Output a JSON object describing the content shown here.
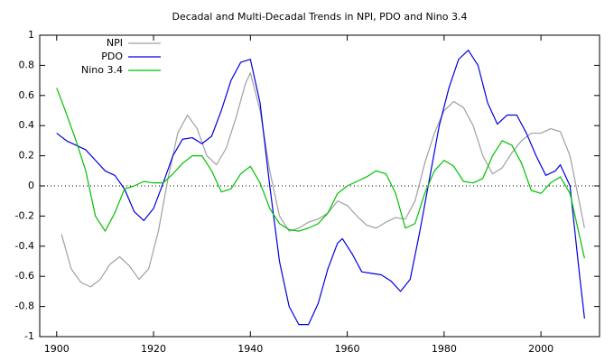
{
  "chart_data": {
    "type": "line",
    "title": "Decadal and Multi-Decadal Trends in NPI, PDO and Nino 3.4",
    "xlim": [
      1896.5,
      2012.1
    ],
    "ylim": [
      -1,
      1
    ],
    "xticks": [
      1900,
      1920,
      1940,
      1960,
      1980,
      2000
    ],
    "yticks": [
      -1,
      -0.8,
      -0.6,
      -0.4,
      -0.2,
      0,
      0.2,
      0.4,
      0.6,
      0.8,
      1
    ],
    "zero_line": true,
    "legend": "top-left",
    "series": [
      {
        "name": "NPI",
        "color": "#a0a0a0",
        "x": [
          1901,
          1903,
          1905,
          1907,
          1909,
          1911,
          1913,
          1915,
          1917,
          1919,
          1921,
          1923,
          1925,
          1927,
          1929,
          1931,
          1933,
          1935,
          1937,
          1939,
          1940,
          1942,
          1944,
          1946,
          1948,
          1950,
          1952,
          1954,
          1956,
          1958,
          1960,
          1962,
          1964,
          1966,
          1968,
          1970,
          1972,
          1974,
          1976,
          1978,
          1980,
          1982,
          1984,
          1986,
          1988,
          1990,
          1992,
          1994,
          1996,
          1998,
          2000,
          2002,
          2004,
          2006,
          2009
        ],
        "values": [
          -0.32,
          -0.55,
          -0.64,
          -0.67,
          -0.62,
          -0.52,
          -0.47,
          -0.53,
          -0.62,
          -0.55,
          -0.3,
          0.05,
          0.35,
          0.47,
          0.38,
          0.2,
          0.14,
          0.25,
          0.45,
          0.68,
          0.75,
          0.5,
          0.1,
          -0.2,
          -0.3,
          -0.28,
          -0.24,
          -0.22,
          -0.18,
          -0.1,
          -0.13,
          -0.2,
          -0.26,
          -0.28,
          -0.24,
          -0.21,
          -0.22,
          -0.1,
          0.15,
          0.35,
          0.5,
          0.56,
          0.52,
          0.4,
          0.2,
          0.08,
          0.12,
          0.22,
          0.3,
          0.35,
          0.35,
          0.38,
          0.36,
          0.2,
          -0.28
        ]
      },
      {
        "name": "PDO",
        "color": "#0000e0",
        "x": [
          1900,
          1902,
          1904,
          1906,
          1908,
          1910,
          1912,
          1914,
          1916,
          1918,
          1920,
          1922,
          1924,
          1926,
          1928,
          1930,
          1932,
          1934,
          1936,
          1938,
          1940,
          1942,
          1944,
          1946,
          1948,
          1950,
          1952,
          1954,
          1956,
          1958,
          1959,
          1961,
          1963,
          1965,
          1967,
          1969,
          1971,
          1973,
          1975,
          1977,
          1979,
          1981,
          1983,
          1985,
          1987,
          1989,
          1991,
          1993,
          1995,
          1997,
          1999,
          2001,
          2003,
          2004,
          2006,
          2008,
          2009
        ],
        "values": [
          0.35,
          0.3,
          0.27,
          0.24,
          0.17,
          0.1,
          0.07,
          -0.02,
          -0.17,
          -0.23,
          -0.15,
          0.02,
          0.2,
          0.31,
          0.32,
          0.28,
          0.33,
          0.5,
          0.7,
          0.82,
          0.84,
          0.55,
          0.0,
          -0.5,
          -0.8,
          -0.92,
          -0.92,
          -0.78,
          -0.55,
          -0.38,
          -0.35,
          -0.45,
          -0.57,
          -0.58,
          -0.59,
          -0.63,
          -0.7,
          -0.62,
          -0.3,
          0.05,
          0.4,
          0.65,
          0.84,
          0.9,
          0.8,
          0.55,
          0.41,
          0.47,
          0.47,
          0.35,
          0.2,
          0.07,
          0.1,
          0.14,
          0.0,
          -0.6,
          -0.88
        ]
      },
      {
        "name": "Nino 3.4",
        "color": "#00c000",
        "x": [
          1900,
          1902,
          1904,
          1906,
          1908,
          1910,
          1912,
          1914,
          1916,
          1918,
          1920,
          1922,
          1924,
          1926,
          1928,
          1930,
          1932,
          1934,
          1936,
          1938,
          1940,
          1942,
          1944,
          1946,
          1948,
          1950,
          1952,
          1954,
          1956,
          1958,
          1960,
          1962,
          1964,
          1966,
          1968,
          1970,
          1972,
          1974,
          1976,
          1978,
          1980,
          1982,
          1984,
          1986,
          1988,
          1990,
          1992,
          1994,
          1996,
          1998,
          2000,
          2002,
          2004,
          2006,
          2009
        ],
        "values": [
          0.65,
          0.48,
          0.3,
          0.1,
          -0.2,
          -0.3,
          -0.18,
          -0.02,
          0.0,
          0.03,
          0.02,
          0.02,
          0.08,
          0.15,
          0.2,
          0.2,
          0.1,
          -0.04,
          -0.02,
          0.08,
          0.13,
          0.02,
          -0.15,
          -0.25,
          -0.29,
          -0.3,
          -0.28,
          -0.25,
          -0.18,
          -0.05,
          0.0,
          0.03,
          0.06,
          0.1,
          0.08,
          -0.05,
          -0.28,
          -0.25,
          -0.05,
          0.1,
          0.17,
          0.13,
          0.03,
          0.02,
          0.05,
          0.2,
          0.3,
          0.27,
          0.15,
          -0.03,
          -0.05,
          0.02,
          0.06,
          -0.05,
          -0.48
        ]
      }
    ]
  }
}
